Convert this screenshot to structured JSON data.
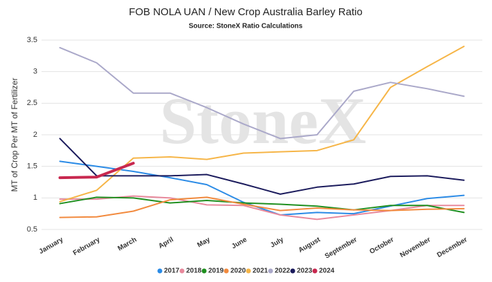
{
  "chart_data": {
    "type": "line",
    "title": "FOB NOLA UAN / New Crop Australia Barley Ratio",
    "subtitle": "Source: StoneX Ratio Calculations",
    "watermark": "StoneX",
    "y_label": "MT of Crop Per MT of Fertilizer",
    "categories": [
      "January",
      "February",
      "March",
      "April",
      "May",
      "June",
      "July",
      "August",
      "September",
      "October",
      "November",
      "December"
    ],
    "ylim": [
      0.5,
      3.5
    ],
    "yticks": [
      0.5,
      1.0,
      1.5,
      2.0,
      2.5,
      3.0,
      3.5
    ],
    "grid": true,
    "legend": "bottom",
    "series": [
      {
        "name": "2017",
        "color": "#2b8be6",
        "values": [
          1.58,
          1.5,
          1.42,
          1.32,
          1.21,
          0.93,
          0.73,
          0.77,
          0.75,
          0.87,
          0.99,
          1.04
        ]
      },
      {
        "name": "2018",
        "color": "#e8899c",
        "values": [
          0.98,
          0.98,
          1.03,
          1.0,
          0.89,
          0.88,
          0.73,
          0.66,
          0.73,
          0.8,
          0.88,
          0.88
        ]
      },
      {
        "name": "2019",
        "color": "#1f8f1f",
        "values": [
          0.91,
          1.01,
          1.0,
          0.92,
          0.96,
          0.92,
          0.9,
          0.87,
          0.81,
          0.88,
          0.88,
          0.77
        ]
      },
      {
        "name": "2020",
        "color": "#f28a3e",
        "values": [
          0.69,
          0.7,
          0.79,
          0.97,
          1.01,
          0.9,
          0.8,
          0.84,
          0.81,
          0.8,
          0.82,
          0.83
        ]
      },
      {
        "name": "2021",
        "color": "#f6b547",
        "values": [
          0.94,
          1.12,
          1.63,
          1.65,
          1.61,
          1.71,
          1.73,
          1.75,
          1.92,
          2.75,
          3.08,
          3.4
        ]
      },
      {
        "name": "2022",
        "color": "#aaa8c9",
        "values": [
          3.38,
          3.14,
          2.66,
          2.66,
          2.43,
          2.17,
          1.94,
          2.0,
          2.69,
          2.83,
          2.73,
          2.61
        ]
      },
      {
        "name": "2023",
        "color": "#1b1b5c",
        "values": [
          1.94,
          1.35,
          1.35,
          1.35,
          1.37,
          1.22,
          1.06,
          1.17,
          1.22,
          1.34,
          1.35,
          1.28
        ]
      },
      {
        "name": "2024",
        "color": "#c8284f",
        "width": 4,
        "values": [
          1.32,
          1.33,
          1.55,
          null,
          null,
          null,
          null,
          null,
          null,
          null,
          null,
          null
        ]
      }
    ]
  }
}
